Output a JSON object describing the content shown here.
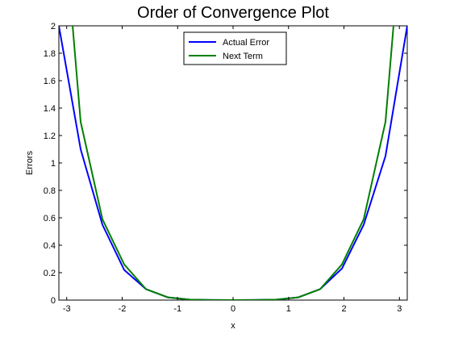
{
  "chart_data": {
    "type": "line",
    "title": "Order of Convergence Plot",
    "xlabel": "x",
    "ylabel": "Errors",
    "xlim": [
      -3.1416,
      3.1416
    ],
    "ylim": [
      0,
      2
    ],
    "xticks": [
      -3,
      -2,
      -1,
      0,
      1,
      2,
      3
    ],
    "xtick_labels": [
      "-3",
      "-2",
      "-1",
      "0",
      "1",
      "2",
      "3"
    ],
    "yticks": [
      0,
      0.2,
      0.4,
      0.6,
      0.8,
      1,
      1.2,
      1.4,
      1.6,
      1.8,
      2
    ],
    "ytick_labels": [
      "0",
      "0.2",
      "0.4",
      "0.6",
      "0.8",
      "1",
      "1.2",
      "1.4",
      "1.6",
      "1.8",
      "2"
    ],
    "grid": false,
    "legend_position": "top-center",
    "x": [
      -3.1416,
      -2.7489,
      -2.3562,
      -1.9635,
      -1.5708,
      -1.1781,
      -0.7854,
      -0.3927,
      0,
      0.3927,
      0.7854,
      1.1781,
      1.5708,
      1.9635,
      2.3562,
      2.7489,
      3.1416
    ],
    "series": [
      {
        "name": "Actual Error",
        "color": "#0000ff",
        "values": [
          2.0,
          1.1,
          0.55,
          0.22,
          0.08,
          0.02,
          0.004,
          0.0005,
          0,
          0.0005,
          0.004,
          0.02,
          0.08,
          0.23,
          0.55,
          1.05,
          2.0
        ]
      },
      {
        "name": "Next Term",
        "color": "#008000",
        "values": [
          3.2,
          1.3,
          0.59,
          0.26,
          0.08,
          0.02,
          0.004,
          0.0005,
          0,
          0.0005,
          0.004,
          0.02,
          0.08,
          0.26,
          0.59,
          1.3,
          3.2
        ]
      }
    ]
  }
}
